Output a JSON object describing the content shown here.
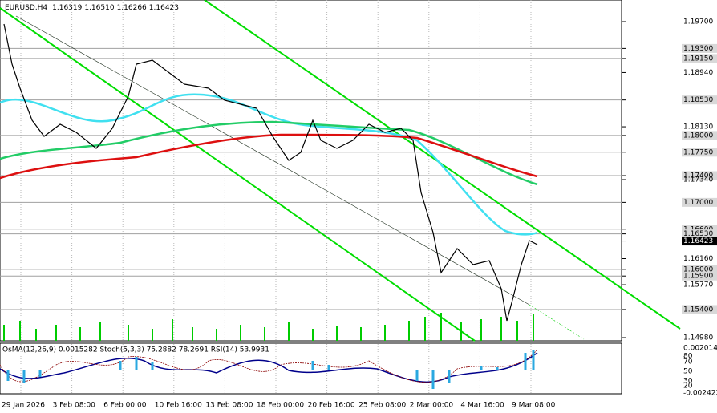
{
  "header": {
    "symbol": "EURUSD,H4",
    "open": "1.16319",
    "high": "1.16510",
    "low": "1.16266",
    "close": "1.16423"
  },
  "price_axis": [
    {
      "label": "1.19700",
      "style": "plain"
    },
    {
      "label": "1.19300",
      "style": "level"
    },
    {
      "label": "1.19150",
      "style": "level"
    },
    {
      "label": "1.18940",
      "style": "plain"
    },
    {
      "label": "1.18530",
      "style": "level"
    },
    {
      "label": "1.18130",
      "style": "plain"
    },
    {
      "label": "1.18000",
      "style": "level"
    },
    {
      "label": "1.17750",
      "style": "level"
    },
    {
      "label": "1.17400",
      "style": "level"
    },
    {
      "label": "1.17340",
      "style": "plain"
    },
    {
      "label": "1.17000",
      "style": "level"
    },
    {
      "label": "1.16600",
      "style": "level"
    },
    {
      "label": "1.16530",
      "style": "level"
    },
    {
      "label": "1.16423",
      "style": "current"
    },
    {
      "label": "1.16160",
      "style": "plain"
    },
    {
      "label": "1.16000",
      "style": "level"
    },
    {
      "label": "1.15900",
      "style": "level"
    },
    {
      "label": "1.15770",
      "style": "plain"
    },
    {
      "label": "1.15400",
      "style": "level"
    },
    {
      "label": "1.14980",
      "style": "plain"
    }
  ],
  "time_axis": [
    "29 Jan 2026",
    "3 Feb 08:00",
    "6 Feb 00:00",
    "10 Feb 16:00",
    "13 Feb 08:00",
    "18 Feb 00:00",
    "20 Feb 16:00",
    "25 Feb 08:00",
    "2 Mar 00:00",
    "4 Mar 16:00",
    "9 Mar 08:00"
  ],
  "indicator_header": "OsMA(12,26,9) 0.0015282  Stoch(5,3,3) 75.2882 78.2691  RSI(14) 53.9931",
  "indicator_axis": [
    "0.002014",
    "80",
    "70",
    "50",
    "30",
    "20",
    "-0.002422"
  ]
}
